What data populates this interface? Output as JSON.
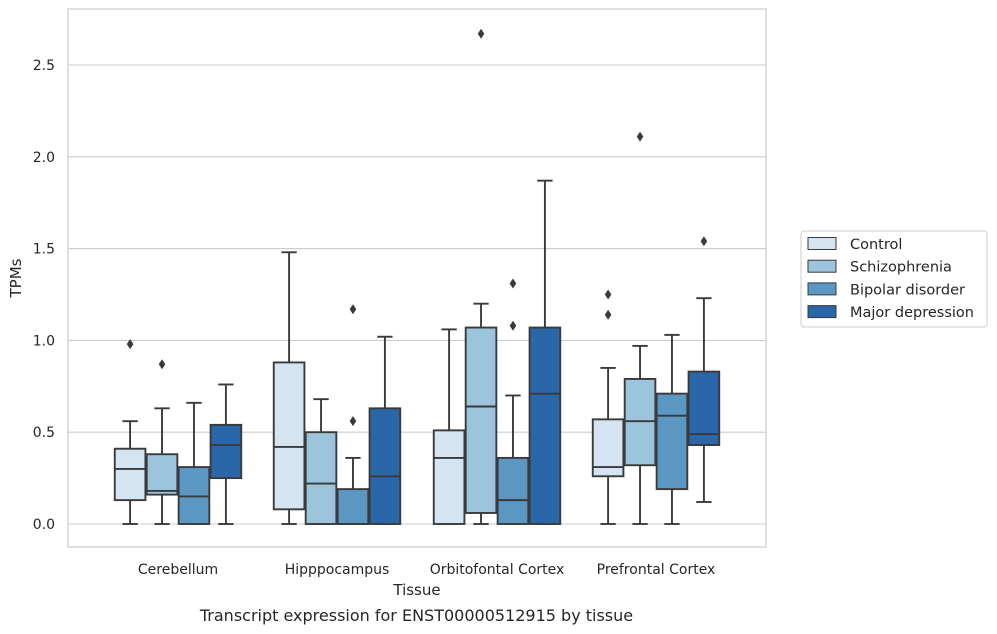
{
  "caption": "Transcript expression for ENST00000512915 by tissue",
  "chart_data": {
    "type": "box",
    "xlabel": "Tissue",
    "ylabel": "TPMs",
    "ylim": [
      -0.13,
      2.82
    ],
    "yticks": [
      0.0,
      0.5,
      1.0,
      1.5,
      2.0,
      2.5
    ],
    "ytick_labels": [
      "0.0",
      "0.5",
      "1.0",
      "1.5",
      "2.0",
      "2.5"
    ],
    "grid": "horizontal",
    "legend_placement": "center-right outside",
    "categories": [
      "Cerebellum",
      "Hipppocampus",
      "Orbitofontal Cortex",
      "Prefrontal Cortex"
    ],
    "series": [
      {
        "name": "Control",
        "color": "#d4e4f3",
        "boxes": [
          {
            "whislo": 0.0,
            "q1": 0.13,
            "median": 0.3,
            "q3": 0.41,
            "whishi": 0.56,
            "fliers": [
              0.98
            ]
          },
          {
            "whislo": 0.0,
            "q1": 0.08,
            "median": 0.42,
            "q3": 0.88,
            "whishi": 1.48,
            "fliers": []
          },
          {
            "whislo": 0.0,
            "q1": 0.0,
            "median": 0.36,
            "q3": 0.51,
            "whishi": 1.06,
            "fliers": []
          },
          {
            "whislo": 0.0,
            "q1": 0.26,
            "median": 0.31,
            "q3": 0.57,
            "whishi": 0.85,
            "fliers": [
              1.14,
              1.25
            ]
          }
        ]
      },
      {
        "name": "Schizophrenia",
        "color": "#9cc4dc",
        "boxes": [
          {
            "whislo": 0.0,
            "q1": 0.16,
            "median": 0.18,
            "q3": 0.38,
            "whishi": 0.63,
            "fliers": [
              0.87
            ]
          },
          {
            "whislo": 0.0,
            "q1": 0.0,
            "median": 0.22,
            "q3": 0.5,
            "whishi": 0.68,
            "fliers": []
          },
          {
            "whislo": 0.0,
            "q1": 0.06,
            "median": 0.64,
            "q3": 1.07,
            "whishi": 1.2,
            "fliers": [
              2.67
            ]
          },
          {
            "whislo": 0.0,
            "q1": 0.32,
            "median": 0.56,
            "q3": 0.79,
            "whishi": 0.97,
            "fliers": [
              2.11
            ]
          }
        ]
      },
      {
        "name": "Bipolar disorder",
        "color": "#5b97c3",
        "boxes": [
          {
            "whislo": 0.0,
            "q1": 0.0,
            "median": 0.15,
            "q3": 0.31,
            "whishi": 0.66,
            "fliers": []
          },
          {
            "whislo": 0.0,
            "q1": 0.0,
            "median": 0.0,
            "q3": 0.19,
            "whishi": 0.36,
            "fliers": [
              0.56,
              1.17
            ]
          },
          {
            "whislo": 0.0,
            "q1": 0.0,
            "median": 0.13,
            "q3": 0.36,
            "whishi": 0.7,
            "fliers": [
              1.08,
              1.31
            ]
          },
          {
            "whislo": 0.0,
            "q1": 0.19,
            "median": 0.59,
            "q3": 0.71,
            "whishi": 1.03,
            "fliers": []
          }
        ]
      },
      {
        "name": "Major depression",
        "color": "#2a67a8",
        "boxes": [
          {
            "whislo": 0.0,
            "q1": 0.25,
            "median": 0.43,
            "q3": 0.54,
            "whishi": 0.76,
            "fliers": []
          },
          {
            "whislo": 0.0,
            "q1": 0.0,
            "median": 0.26,
            "q3": 0.63,
            "whishi": 1.02,
            "fliers": []
          },
          {
            "whislo": 0.0,
            "q1": 0.0,
            "median": 0.71,
            "q3": 1.07,
            "whishi": 1.87,
            "fliers": []
          },
          {
            "whislo": 0.12,
            "q1": 0.43,
            "median": 0.49,
            "q3": 0.83,
            "whishi": 1.23,
            "fliers": [
              1.54
            ]
          }
        ]
      }
    ]
  }
}
